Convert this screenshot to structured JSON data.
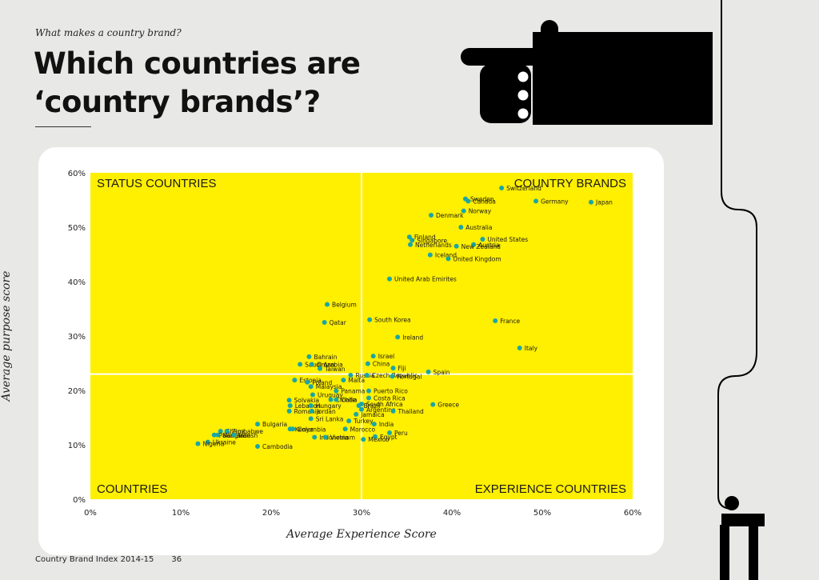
{
  "header": {
    "kicker": "What makes a country brand?",
    "title": "Which countries are ‘country brands’?"
  },
  "footer": {
    "publication": "Country Brand Index  2014-15",
    "page": "36"
  },
  "colors": {
    "background": "#e8e8e7",
    "plot_fill": "#ffef00",
    "point": "#1aa7a4",
    "text": "#1a1a1a",
    "divider": "#ffffff"
  },
  "icons": [
    "pointing-hand-icon",
    "person-at-desk-icon"
  ],
  "chart_data": {
    "type": "scatter",
    "xlabel": "Average Experience Score",
    "ylabel": "Average purpose score",
    "xlim": [
      0,
      60
    ],
    "ylim": [
      0,
      60
    ],
    "x_ticks": [
      "0%",
      "10%",
      "20%",
      "30%",
      "40%",
      "50%",
      "60%"
    ],
    "y_ticks": [
      "0%",
      "10%",
      "20%",
      "30%",
      "40%",
      "50%",
      "60%"
    ],
    "divider": {
      "x": 30,
      "y": 23
    },
    "quadrant_labels": {
      "top_left": "STATUS COUNTRIES",
      "top_right": "COUNTRY BRANDS",
      "bottom_left": "COUNTRIES",
      "bottom_right": "EXPERIENCE COUNTRIES"
    },
    "points": [
      {
        "name": "Switzerland",
        "x": 45.5,
        "y": 57.2
      },
      {
        "name": "Sweden",
        "x": 41.5,
        "y": 55.2
      },
      {
        "name": "Canada",
        "x": 41.8,
        "y": 54.8
      },
      {
        "name": "Germany",
        "x": 49.3,
        "y": 54.8
      },
      {
        "name": "Japan",
        "x": 55.4,
        "y": 54.6
      },
      {
        "name": "Norway",
        "x": 41.3,
        "y": 53.0
      },
      {
        "name": "Denmark",
        "x": 37.7,
        "y": 52.2
      },
      {
        "name": "Australia",
        "x": 41.0,
        "y": 50.0
      },
      {
        "name": "Finland",
        "x": 35.3,
        "y": 48.2
      },
      {
        "name": "Singapore",
        "x": 35.6,
        "y": 47.6
      },
      {
        "name": "United States",
        "x": 43.4,
        "y": 47.8
      },
      {
        "name": "Netherlands",
        "x": 35.4,
        "y": 46.8
      },
      {
        "name": "Austria",
        "x": 42.4,
        "y": 46.8
      },
      {
        "name": "New Zealand",
        "x": 40.5,
        "y": 46.5
      },
      {
        "name": "Iceland",
        "x": 37.6,
        "y": 44.9
      },
      {
        "name": "United Kingdom",
        "x": 39.6,
        "y": 44.2
      },
      {
        "name": "United Arab Emirites",
        "x": 33.1,
        "y": 40.5
      },
      {
        "name": "Belgium",
        "x": 26.2,
        "y": 35.8
      },
      {
        "name": "Qatar",
        "x": 25.9,
        "y": 32.5
      },
      {
        "name": "South Korea",
        "x": 30.9,
        "y": 33.0
      },
      {
        "name": "France",
        "x": 44.8,
        "y": 32.8
      },
      {
        "name": "Ireland",
        "x": 34.0,
        "y": 29.8
      },
      {
        "name": "Italy",
        "x": 47.5,
        "y": 27.8
      },
      {
        "name": "Bahrain",
        "x": 24.2,
        "y": 26.2
      },
      {
        "name": "Israel",
        "x": 31.3,
        "y": 26.3
      },
      {
        "name": "Saudi Arabia",
        "x": 23.2,
        "y": 24.8
      },
      {
        "name": "Oman",
        "x": 24.5,
        "y": 24.8
      },
      {
        "name": "China",
        "x": 30.7,
        "y": 24.9
      },
      {
        "name": "Fiji",
        "x": 33.5,
        "y": 24.1
      },
      {
        "name": "Taiwan",
        "x": 25.4,
        "y": 24.0
      },
      {
        "name": "Russia",
        "x": 28.8,
        "y": 22.8
      },
      {
        "name": "Czech Republic",
        "x": 30.6,
        "y": 22.8
      },
      {
        "name": "Portugal",
        "x": 33.4,
        "y": 22.6
      },
      {
        "name": "Spain",
        "x": 37.4,
        "y": 23.4
      },
      {
        "name": "Estonia",
        "x": 22.6,
        "y": 21.9
      },
      {
        "name": "Poland",
        "x": 24.0,
        "y": 21.5
      },
      {
        "name": "Malta",
        "x": 28.0,
        "y": 21.9
      },
      {
        "name": "Malaysia",
        "x": 24.4,
        "y": 20.7
      },
      {
        "name": "Panama",
        "x": 27.2,
        "y": 19.9
      },
      {
        "name": "Puerto Rico",
        "x": 30.8,
        "y": 19.9
      },
      {
        "name": "Uruguay",
        "x": 24.6,
        "y": 19.2
      },
      {
        "name": "Solvakia",
        "x": 22.0,
        "y": 18.2
      },
      {
        "name": "Croatia",
        "x": 26.6,
        "y": 18.3
      },
      {
        "name": "Chile",
        "x": 27.2,
        "y": 18.3
      },
      {
        "name": "Costa Rica",
        "x": 30.8,
        "y": 18.6
      },
      {
        "name": "Lebanon",
        "x": 22.1,
        "y": 17.2
      },
      {
        "name": "Hungary",
        "x": 24.4,
        "y": 17.2
      },
      {
        "name": "Brazil",
        "x": 29.7,
        "y": 17.2
      },
      {
        "name": "South Africa",
        "x": 30.0,
        "y": 17.5
      },
      {
        "name": "Greece",
        "x": 37.9,
        "y": 17.4
      },
      {
        "name": "Romania",
        "x": 22.0,
        "y": 16.2
      },
      {
        "name": "Jordan",
        "x": 24.5,
        "y": 16.2
      },
      {
        "name": "Argentina",
        "x": 30.0,
        "y": 16.5
      },
      {
        "name": "Thailand",
        "x": 33.5,
        "y": 16.2
      },
      {
        "name": "Jamaica",
        "x": 29.4,
        "y": 15.6
      },
      {
        "name": "Sri Lanka",
        "x": 24.4,
        "y": 14.8
      },
      {
        "name": "Turkey",
        "x": 28.6,
        "y": 14.4
      },
      {
        "name": "Bulgaria",
        "x": 18.5,
        "y": 13.8
      },
      {
        "name": "Kenya",
        "x": 22.1,
        "y": 12.9
      },
      {
        "name": "Columbia",
        "x": 22.4,
        "y": 12.9
      },
      {
        "name": "India",
        "x": 31.4,
        "y": 13.8
      },
      {
        "name": "Morocco",
        "x": 28.2,
        "y": 12.9
      },
      {
        "name": "Ghana",
        "x": 14.4,
        "y": 12.5
      },
      {
        "name": "Zimbabwe",
        "x": 15.1,
        "y": 12.5
      },
      {
        "name": "Pakistan",
        "x": 13.7,
        "y": 11.8
      },
      {
        "name": "Bangladesh",
        "x": 14.1,
        "y": 11.8
      },
      {
        "name": "Iran",
        "x": 15.9,
        "y": 11.8
      },
      {
        "name": "Indonesia",
        "x": 24.8,
        "y": 11.4
      },
      {
        "name": "Vietnam",
        "x": 26.0,
        "y": 11.4
      },
      {
        "name": "Peru",
        "x": 33.1,
        "y": 12.2
      },
      {
        "name": "Egypt",
        "x": 31.5,
        "y": 11.5
      },
      {
        "name": "Mexico",
        "x": 30.2,
        "y": 11.0
      },
      {
        "name": "Ukraine",
        "x": 13.0,
        "y": 10.5
      },
      {
        "name": "Nigeria",
        "x": 11.9,
        "y": 10.2
      },
      {
        "name": "Cambodia",
        "x": 18.5,
        "y": 9.7
      }
    ]
  }
}
